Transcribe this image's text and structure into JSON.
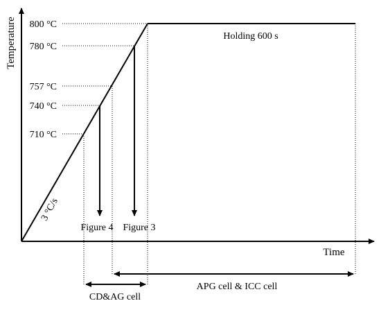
{
  "chart_data": {
    "type": "line",
    "xlabel": "Time",
    "ylabel": "Temperature",
    "heating_rate_label": "3 °C/s",
    "hold_label": "Holding 600 s",
    "temperature_marks": [
      {
        "value": 800,
        "label": "800 °C"
      },
      {
        "value": 780,
        "label": "780 °C"
      },
      {
        "value": 757,
        "label": "757 °C"
      },
      {
        "value": 740,
        "label": "740 °C"
      },
      {
        "value": 710,
        "label": "710 °C"
      }
    ],
    "quench_arrows": [
      {
        "from_temp": 740,
        "label": "Figure 4"
      },
      {
        "from_temp": 780,
        "label": "Figure 3"
      }
    ],
    "ranges": [
      {
        "label": "CD&AG cell",
        "from_temp": 710,
        "to_temp": 800
      },
      {
        "label": "APG cell & ICC cell",
        "from_temp": 757,
        "to_temp": "end of hold"
      }
    ]
  }
}
